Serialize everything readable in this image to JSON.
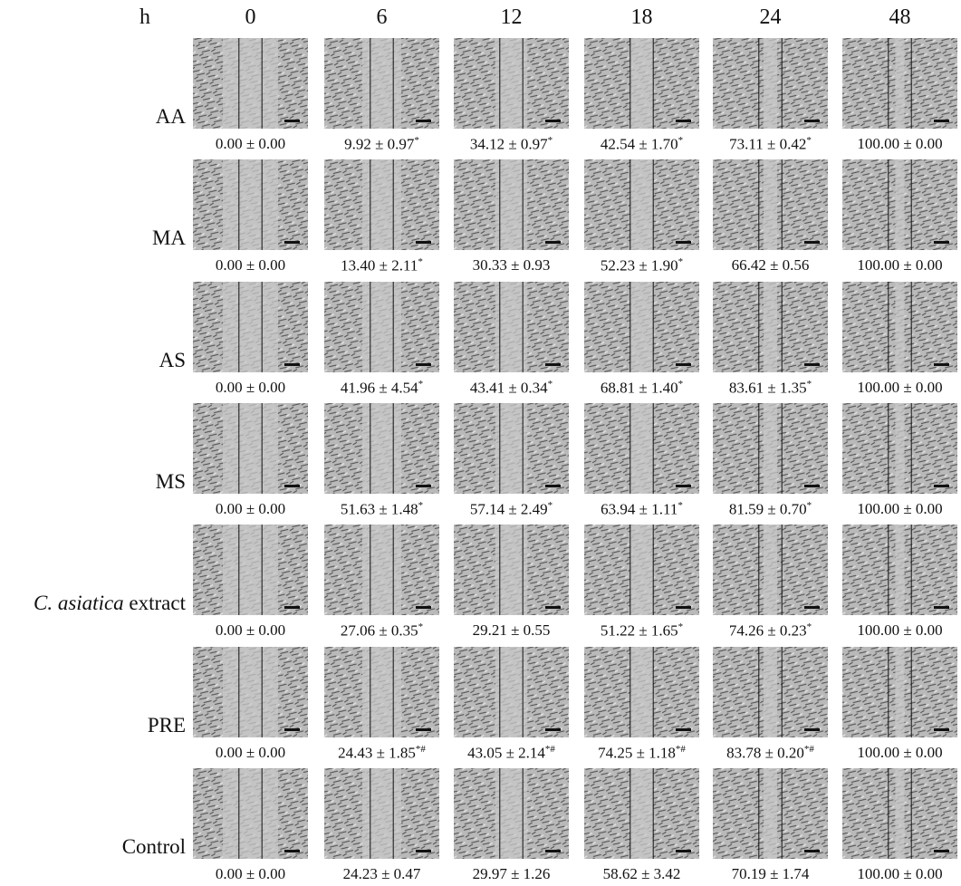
{
  "header": {
    "corner": "h",
    "times": [
      "0",
      "6",
      "12",
      "18",
      "24",
      "48"
    ]
  },
  "rows": [
    {
      "label": "AA",
      "cells": [
        {
          "text": "0.00 ± 0.00"
        },
        {
          "text": "9.92 ± 0.97",
          "sup": "*"
        },
        {
          "text": "34.12 ± 0.97",
          "sup": "*"
        },
        {
          "text": "42.54 ± 1.70",
          "sup": "*"
        },
        {
          "text": "73.11 ± 0.42",
          "sup": "*"
        },
        {
          "text": "100.00 ± 0.00"
        }
      ]
    },
    {
      "label": "MA",
      "cells": [
        {
          "text": "0.00 ± 0.00"
        },
        {
          "text": "13.40 ± 2.11",
          "sup": "*"
        },
        {
          "text": "30.33 ± 0.93"
        },
        {
          "text": "52.23 ± 1.90",
          "sup": "*"
        },
        {
          "text": "66.42 ± 0.56"
        },
        {
          "text": "100.00 ± 0.00"
        }
      ]
    },
    {
      "label": "AS",
      "cells": [
        {
          "text": "0.00 ± 0.00"
        },
        {
          "text": "41.96 ± 4.54",
          "sup": "*"
        },
        {
          "text": "43.41 ± 0.34",
          "sup": "*"
        },
        {
          "text": "68.81 ± 1.40",
          "sup": "*"
        },
        {
          "text": "83.61 ± 1.35",
          "sup": "*"
        },
        {
          "text": "100.00 ± 0.00"
        }
      ]
    },
    {
      "label": "MS",
      "cells": [
        {
          "text": "0.00 ± 0.00"
        },
        {
          "text": "51.63 ± 1.48",
          "sup": "*"
        },
        {
          "text": "57.14 ± 2.49",
          "sup": "*"
        },
        {
          "text": "63.94 ± 1.11",
          "sup": "*"
        },
        {
          "text": "81.59 ± 0.70",
          "sup": "*"
        },
        {
          "text": "100.00 ± 0.00"
        }
      ]
    },
    {
      "label_italic": "C. asiatica",
      "label": "extract",
      "cells": [
        {
          "text": "0.00 ± 0.00"
        },
        {
          "text": "27.06 ± 0.35",
          "sup": "*"
        },
        {
          "text": "29.21 ± 0.55"
        },
        {
          "text": "51.22 ± 1.65",
          "sup": "*"
        },
        {
          "text": "74.26 ± 0.23",
          "sup": "*"
        },
        {
          "text": "100.00 ± 0.00"
        }
      ]
    },
    {
      "label": "PRE",
      "cells": [
        {
          "text": "0.00 ± 0.00"
        },
        {
          "text": "24.43 ± 1.85",
          "sup": "*#"
        },
        {
          "text": "43.05 ± 2.14",
          "sup": "*#"
        },
        {
          "text": "74.25 ± 1.18",
          "sup": "*#"
        },
        {
          "text": "83.78 ± 0.20",
          "sup": "*#"
        },
        {
          "text": "100.00 ± 0.00"
        }
      ]
    },
    {
      "label": "Control",
      "cells": [
        {
          "text": "0.00 ± 0.00"
        },
        {
          "text": "24.23 ± 0.47"
        },
        {
          "text": "29.97 ± 1.26"
        },
        {
          "text": "58.62 ± 3.42"
        },
        {
          "text": "70.19 ± 1.74"
        },
        {
          "text": "100.00 ± 0.00"
        }
      ]
    }
  ]
}
